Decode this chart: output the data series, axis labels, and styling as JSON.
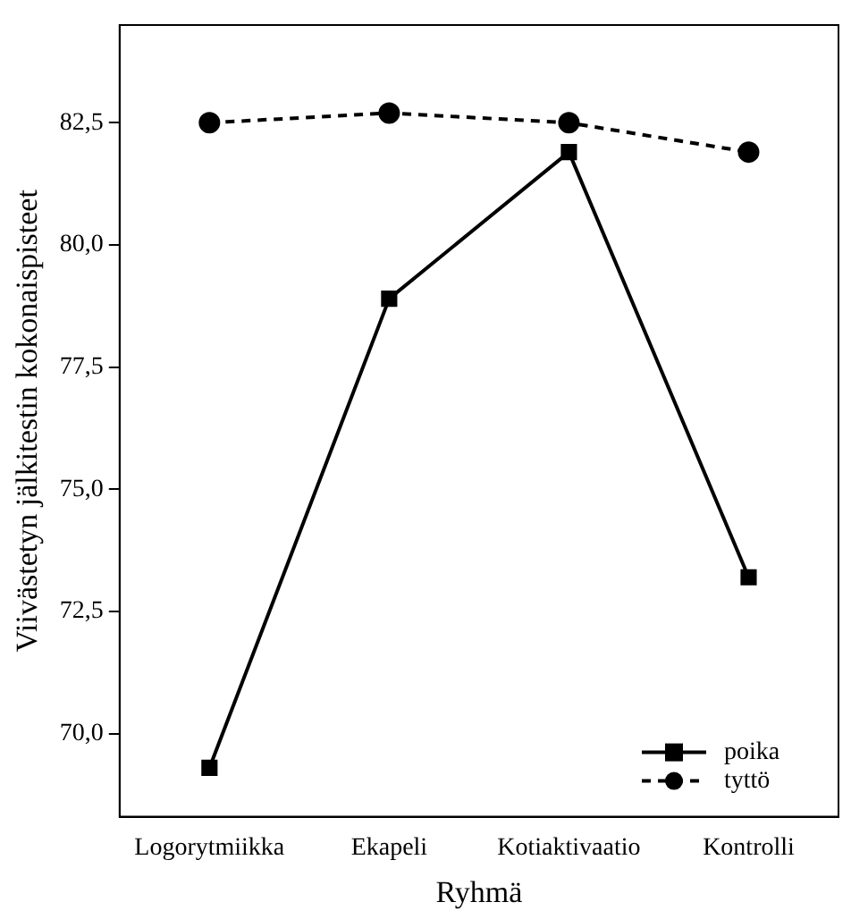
{
  "chart_data": {
    "type": "line",
    "xlabel": "Ryhmä",
    "ylabel": "Viivästetyn jälkitestin kokonaispisteet",
    "categories": [
      "Logorytmiikka",
      "Ekapeli",
      "Kotiaktivaatio",
      "Kontrolli"
    ],
    "series": [
      {
        "name": "poika",
        "color": "#000000",
        "values": [
          69.3,
          78.9,
          81.9,
          73.2
        ],
        "marker": "square",
        "line_style": "solid"
      },
      {
        "name": "tyttö",
        "color": "#000000",
        "values": [
          82.5,
          82.7,
          82.5,
          81.9
        ],
        "marker": "circle",
        "line_style": "dashed"
      }
    ],
    "ylim": [
      68.3,
      84.5
    ],
    "yticks": [
      {
        "value": 70,
        "label": "70,0"
      },
      {
        "value": 72.5,
        "label": "72,5"
      },
      {
        "value": 75,
        "label": "75,0"
      },
      {
        "value": 77.5,
        "label": "77,5"
      },
      {
        "value": 80,
        "label": "80,0"
      },
      {
        "value": 82.5,
        "label": "82,5"
      }
    ],
    "grid": false,
    "legend": "bottom right"
  }
}
